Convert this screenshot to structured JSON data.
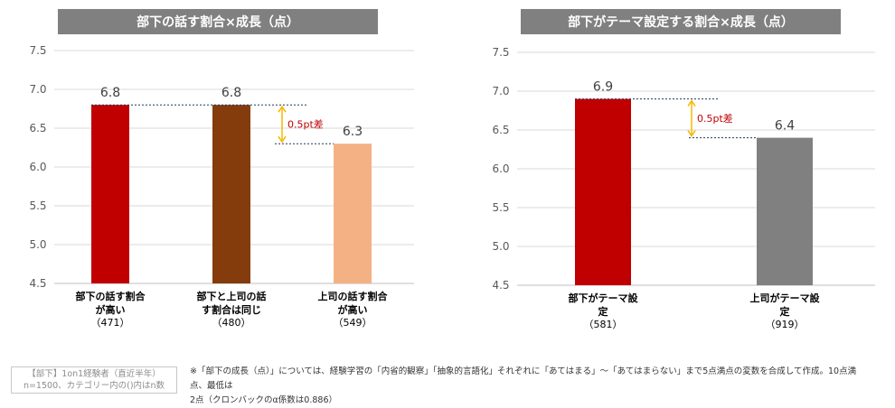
{
  "chart_data": [
    {
      "type": "bar",
      "title": "部下の話す割合×成長（点）",
      "ylim": [
        4.5,
        7.5
      ],
      "yticks": [
        "7.5",
        "7.0",
        "6.5",
        "6.0",
        "5.5",
        "5.0",
        "4.5"
      ],
      "categories": [
        {
          "line1": "部下の話す割合",
          "line2": "が高い",
          "n": "（471）"
        },
        {
          "line1": "部下と上司の話",
          "line2": "す割合は同じ",
          "n": "（480）"
        },
        {
          "line1": "上司の話す割合",
          "line2": "が高い",
          "n": "（549）"
        }
      ],
      "values": [
        6.8,
        6.8,
        6.3
      ],
      "value_labels": [
        "6.8",
        "6.8",
        "6.3"
      ],
      "colors": [
        "#c00000",
        "#843c0c",
        "#f4b183"
      ],
      "annotation": {
        "text": "0.5pt差",
        "from": 6.8,
        "to": 6.3
      }
    },
    {
      "type": "bar",
      "title": "部下がテーマ設定する割合×成長（点）",
      "ylim": [
        4.5,
        7.5
      ],
      "yticks": [
        "7.5",
        "7.0",
        "6.5",
        "6.0",
        "5.5",
        "5.0",
        "4.5"
      ],
      "categories": [
        {
          "line1": "部下がテーマ設",
          "line2": "定",
          "n": "（581）"
        },
        {
          "line1": "上司がテーマ設",
          "line2": "定",
          "n": "（919）"
        }
      ],
      "values": [
        6.9,
        6.4
      ],
      "value_labels": [
        "6.9",
        "6.4"
      ],
      "colors": [
        "#c00000",
        "#808080"
      ],
      "annotation": {
        "text": "0.5pt差",
        "from": 6.9,
        "to": 6.4
      }
    }
  ],
  "notes": {
    "sample_line1": "【部下】1on1経験者（直近半年）",
    "sample_line2": "n=1500、カテゴリー内の()内はn数",
    "footnote_line1": "※「部下の成長（点）」については、経験学習の「内省的観察」「抽象的言語化」それぞれに「あてはまる」～「あてはまらない」まで5点満点の変数を合成して作成。10点満点、最低は",
    "footnote_line2": "2点（クロンバックのα係数は0.886）"
  },
  "theme": {
    "title_bg": "#808080",
    "grid": "#d9d9d9",
    "annotation_arrow": "#f5b800",
    "annotation_text": "#c00000"
  }
}
